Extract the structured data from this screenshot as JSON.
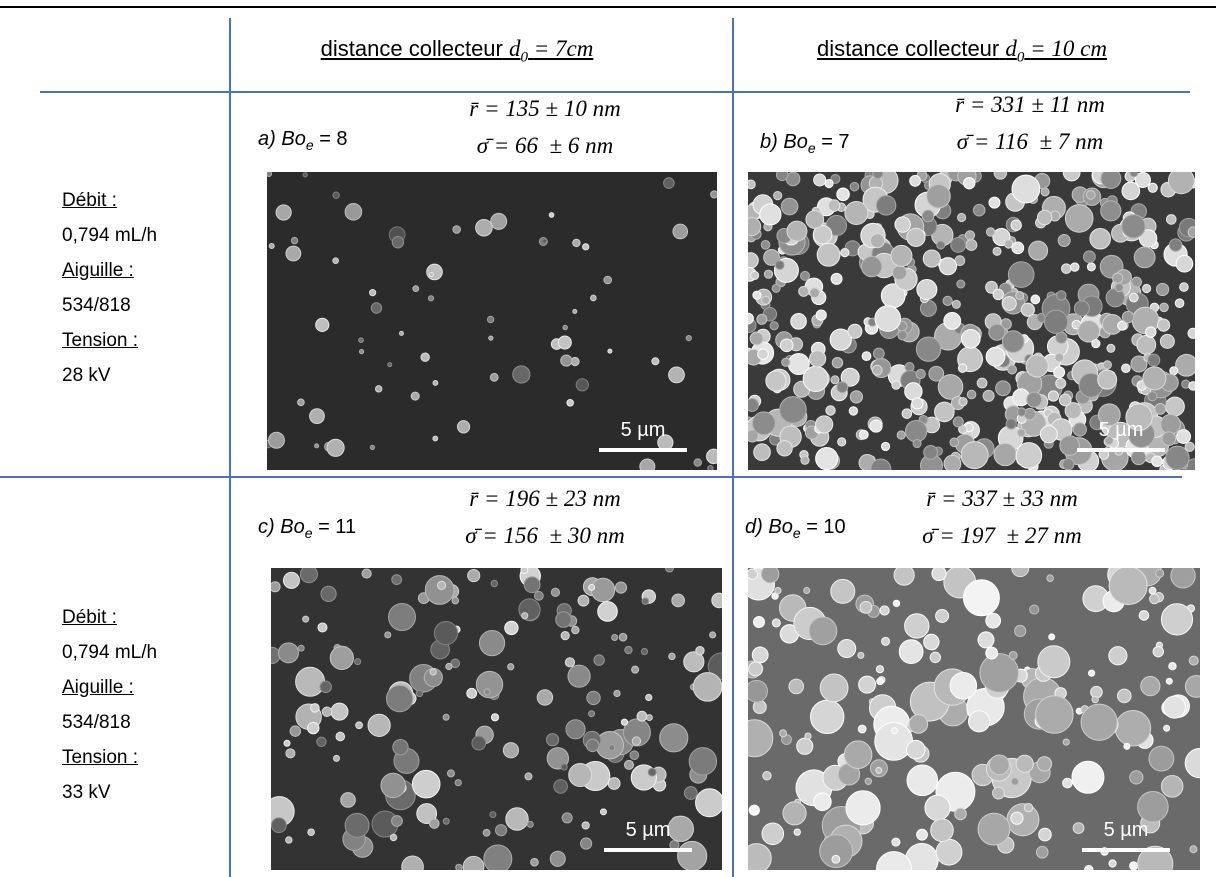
{
  "header": [
    {
      "prefix": "distance collecteur",
      "symbol": "d",
      "subscript": "0",
      "rest": "= 7cm"
    },
    {
      "prefix": "distance collecteur",
      "symbol": "d",
      "subscript": "0",
      "rest": "= 10 cm"
    }
  ],
  "rows": [
    {
      "params": {
        "flow_label": "Débit :",
        "flow": "0,794 mL/h",
        "needle_label": "Aiguille :",
        "needle": "534/818",
        "voltage_label": "Tension :",
        "voltage": "28 kV"
      },
      "cells": [
        {
          "label": "a)",
          "bo": "Bo",
          "bo_sub": "e",
          "bo_value": "= 8",
          "r": "r̄ = 135 ± 10 nm",
          "sigma": "σ̄ = 66  ± 6 nm",
          "scale": "5 µm"
        },
        {
          "label": "b)",
          "bo": "Bo",
          "bo_sub": "e",
          "bo_value": "= 7",
          "r": "r̄ = 331 ± 11 nm",
          "sigma": "σ̄ = 116  ± 7 nm",
          "scale": "5 µm"
        }
      ]
    },
    {
      "params": {
        "flow_label": "Débit :",
        "flow": "0,794 mL/h",
        "needle_label": "Aiguille :",
        "needle": "534/818",
        "voltage_label": "Tension :",
        "voltage": "33 kV"
      },
      "cells": [
        {
          "label": "c)",
          "bo": "Bo",
          "bo_sub": "e",
          "bo_value": "= 11",
          "r": "r̄ = 196 ± 23 nm",
          "sigma": "σ̄ = 156  ± 30 nm",
          "scale": "5 µm"
        },
        {
          "label": "d)",
          "bo": "Bo",
          "bo_sub": "e",
          "bo_value": "= 10",
          "r": "r̄ = 337 ± 33 nm",
          "sigma": "σ̄ = 197  ± 27 nm",
          "scale": "5 µm"
        }
      ]
    }
  ]
}
